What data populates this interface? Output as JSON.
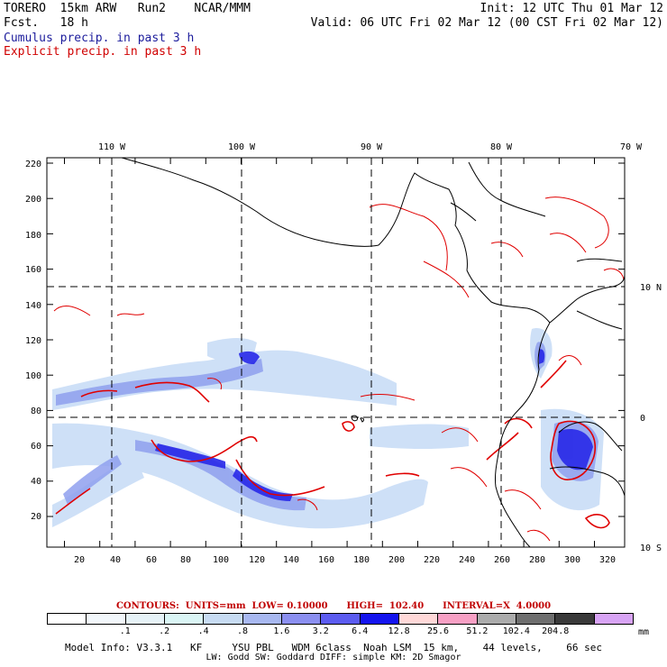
{
  "header": {
    "model": "TORERO  15km ARW   Run2    NCAR/MMM",
    "init": "Init: 12 UTC Thu 01 Mar 12",
    "fcst": "Fcst.   18 h",
    "valid": "Valid: 06 UTC Fri 02 Mar 12 (00 CST Fri 02 Mar 12)",
    "cumulus": "Cumulus precip. in past 3 h",
    "explicit": "Explicit precip. in past 3 h"
  },
  "map": {
    "top_lon_labels": [
      "110 W",
      "100 W",
      "90 W",
      "80 W",
      "70 W"
    ],
    "right_lat_labels": [
      "10 N",
      "0",
      "10 S"
    ],
    "y_ticks": [
      "220",
      "200",
      "180",
      "160",
      "140",
      "120",
      "100",
      "80",
      "60",
      "40",
      "20"
    ],
    "x_ticks": [
      "20",
      "40",
      "60",
      "80",
      "100",
      "120",
      "140",
      "160",
      "180",
      "200",
      "220",
      "240",
      "260",
      "280",
      "300",
      "320"
    ],
    "colors": {
      "coast": "#000000",
      "explicit_contour": "#e00000",
      "precip_light": "#c6dbf6",
      "precip_mid": "#8fa0ee",
      "precip_dark": "#2828e8"
    }
  },
  "contour_info": "CONTOURS:  UNITS=mm  LOW= 0.10000      HIGH=  102.40      INTERVAL=X  4.0000",
  "legend": {
    "colors": [
      "#ffffff",
      "#f2f7fb",
      "#e6f2f7",
      "#daf5f5",
      "#c7dbf2",
      "#a8b8f0",
      "#8b8ff0",
      "#5c5cf0",
      "#1414ee",
      "#ffd8d8",
      "#f7a0c4",
      "#ababab",
      "#6e6e6e",
      "#3a3a3a",
      "#d8a4f5"
    ],
    "labels": [
      ".1",
      ".2",
      ".4",
      ".8",
      "1.6",
      "3.2",
      "6.4",
      "12.8",
      "25.6",
      "51.2",
      "102.4",
      "204.8"
    ],
    "unit": "mm"
  },
  "footer": {
    "line1": "Model Info: V3.3.1   KF     YSU PBL   WDM 6class  Noah LSM  15 km,    44 levels,    66 sec",
    "line2": "LW: Godd SW: Goddard DIFF: simple KM: 2D Smagor"
  }
}
